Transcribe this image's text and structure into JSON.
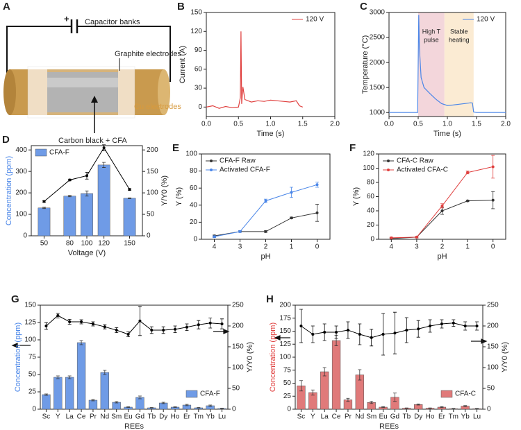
{
  "diagram": {
    "panel": "A",
    "labels": {
      "plus": "+",
      "capacitor": "Capacitor banks",
      "graphite": "Graphite electrodes",
      "cu": "Cu electrodes",
      "carbon": "Carbon black + CFA"
    }
  },
  "chart_data": [
    {
      "type": "line",
      "panel": "B",
      "xlabel": "Time (s)",
      "ylabel": "Current (A)",
      "xlim": [
        0,
        2
      ],
      "xticks": [
        {
          "value": 0,
          "label": "0.0"
        },
        {
          "value": 0.5,
          "label": "0.5"
        },
        {
          "value": 1,
          "label": "1.0"
        },
        {
          "value": 1.5,
          "label": "1.5"
        },
        {
          "value": 2,
          "label": "2.0"
        }
      ],
      "ylim": [
        -15,
        150
      ],
      "yticks": [
        0,
        30,
        60,
        90,
        120,
        150
      ],
      "legend": "upper right",
      "series": [
        {
          "name": "120 V",
          "color": "#e0403f",
          "x": [
            0,
            0.1,
            0.2,
            0.3,
            0.4,
            0.5,
            0.53,
            0.54,
            0.55,
            0.56,
            0.57,
            0.6,
            0.7,
            0.8,
            0.9,
            1.0,
            1.1,
            1.2,
            1.3,
            1.4,
            1.45,
            1.5
          ],
          "values": [
            0,
            2,
            -2,
            1,
            -1,
            0,
            15,
            120,
            5,
            20,
            32,
            12,
            8,
            10,
            9,
            11,
            10,
            9,
            8,
            10,
            2,
            0
          ]
        }
      ]
    },
    {
      "type": "line",
      "panel": "C",
      "xlabel": "Time (s)",
      "ylabel": "Temperature (°C)",
      "xlim": [
        0,
        2
      ],
      "xticks": [
        {
          "value": 0,
          "label": "0.0"
        },
        {
          "value": 0.5,
          "label": "0.5"
        },
        {
          "value": 1,
          "label": "1.0"
        },
        {
          "value": 1.5,
          "label": "1.5"
        },
        {
          "value": 2,
          "label": "2.0"
        }
      ],
      "ylim": [
        920,
        3000
      ],
      "yticks": [
        1000,
        1500,
        2000,
        2500,
        3000
      ],
      "legend": "upper right",
      "regions": [
        {
          "label": [
            "High T",
            "pulse"
          ],
          "x": [
            0.5,
            0.95
          ],
          "color": "#f3d6db"
        },
        {
          "label": [
            "Stable",
            "heating"
          ],
          "x": [
            0.95,
            1.45
          ],
          "color": "#fbebd3"
        }
      ],
      "series": [
        {
          "name": "120 V",
          "color": "#4a86e8",
          "x": [
            0,
            0.1,
            0.2,
            0.3,
            0.4,
            0.49,
            0.5,
            0.51,
            0.52,
            0.55,
            0.6,
            0.7,
            0.8,
            0.9,
            1.0,
            1.1,
            1.2,
            1.3,
            1.4,
            1.43,
            1.45,
            1.5,
            1.7,
            2.0
          ],
          "values": [
            1000,
            1000,
            1000,
            1000,
            1000,
            1000,
            2000,
            2950,
            2300,
            1700,
            1500,
            1380,
            1270,
            1180,
            1140,
            1150,
            1165,
            1180,
            1195,
            1190,
            1010,
            1000,
            1000,
            1000
          ]
        }
      ]
    },
    {
      "type": "combo",
      "panel": "D",
      "xlabel": "Voltage (V)",
      "ylabel": "Concentration (ppm)",
      "y2label": "Y/Y0 (%)",
      "ylabel_color": "#4a86e8",
      "x": [
        50,
        80,
        100,
        120,
        150
      ],
      "xlim": [
        35,
        165
      ],
      "xticks": [
        50,
        80,
        100,
        120,
        150
      ],
      "ylim": [
        0,
        420
      ],
      "yticks": [
        0,
        100,
        200,
        300,
        400
      ],
      "y2lim": [
        0,
        210
      ],
      "y2ticks": [
        0,
        50,
        100,
        150,
        200
      ],
      "legend": "upper left",
      "series": [
        {
          "name": "CFA-F",
          "type": "bar",
          "color": "#6f9be6",
          "values": [
            130,
            185,
            197,
            330,
            175
          ],
          "errors": [
            3,
            3,
            12,
            12,
            2
          ]
        },
        {
          "type": "line",
          "axis": "y2",
          "color": "#000000",
          "values": [
            80,
            130,
            140,
            205,
            108
          ],
          "errors": [
            2,
            2,
            8,
            7,
            2
          ]
        }
      ]
    },
    {
      "type": "line",
      "panel": "E",
      "xlabel": "pH",
      "ylabel": "Y (%)",
      "categories": [
        "4",
        "3",
        "2",
        "1",
        "0"
      ],
      "ylim": [
        0,
        100
      ],
      "yticks": [
        0,
        20,
        40,
        60,
        80,
        100
      ],
      "legend": "upper left",
      "series": [
        {
          "name": "CFA-F Raw",
          "color": "#333333",
          "values": [
            4,
            9,
            9,
            25,
            31
          ],
          "errors": [
            1,
            1,
            1,
            1,
            10
          ]
        },
        {
          "name": "Activated CFA-F",
          "color": "#4a86e8",
          "values": [
            3,
            9,
            45,
            55,
            64
          ],
          "errors": [
            1,
            1,
            2,
            6,
            3
          ]
        }
      ]
    },
    {
      "type": "line",
      "panel": "F",
      "xlabel": "pH",
      "ylabel": "Y (%)",
      "categories": [
        "4",
        "3",
        "2",
        "1",
        "0"
      ],
      "ylim": [
        0,
        120
      ],
      "yticks": [
        0,
        20,
        40,
        60,
        80,
        100,
        120
      ],
      "legend": "upper left",
      "series": [
        {
          "name": "CFA-C Raw",
          "color": "#333333",
          "values": [
            1,
            3,
            40,
            54,
            55
          ],
          "errors": [
            1,
            1,
            5,
            1,
            12
          ]
        },
        {
          "name": "Activated CFA-C",
          "color": "#e0403f",
          "values": [
            2,
            3,
            47,
            94,
            102
          ],
          "errors": [
            1,
            1,
            3,
            2,
            16
          ]
        }
      ]
    },
    {
      "type": "combo",
      "panel": "G",
      "xlabel": "REEs",
      "ylabel": "Concentration (ppm)",
      "y2label": "Y/Y0 (%)",
      "ylabel_color": "#4a86e8",
      "categories": [
        "Sc",
        "Y",
        "La",
        "Ce",
        "Pr",
        "Nd",
        "Sm",
        "Eu",
        "Gd",
        "Tb",
        "Dy",
        "Ho",
        "Er",
        "Tm",
        "Yb",
        "Lu"
      ],
      "ylim": [
        0,
        150
      ],
      "yticks": [
        0,
        25,
        50,
        75,
        100,
        125,
        150
      ],
      "y2lim": [
        0,
        250
      ],
      "y2ticks": [
        0,
        50,
        100,
        150,
        200,
        250
      ],
      "legend": "lower right",
      "series": [
        {
          "name": "CFA-F",
          "type": "bar",
          "color": "#6f9be6",
          "values": [
            21,
            46,
            46,
            96,
            13,
            53,
            10,
            3,
            17,
            2,
            9,
            3,
            6,
            2,
            5,
            1
          ],
          "errors": [
            1,
            2,
            2,
            3,
            1,
            3,
            1,
            0.5,
            2,
            0.5,
            1,
            0.5,
            1,
            0.5,
            1,
            0.5
          ]
        },
        {
          "type": "line",
          "axis": "y2",
          "color": "#000000",
          "values": [
            200,
            225,
            210,
            210,
            205,
            198,
            190,
            180,
            212,
            190,
            190,
            192,
            197,
            203,
            207,
            205
          ],
          "errors": [
            8,
            6,
            6,
            5,
            5,
            5,
            6,
            6,
            35,
            8,
            8,
            8,
            8,
            10,
            12,
            12
          ]
        }
      ]
    },
    {
      "type": "combo",
      "panel": "H",
      "xlabel": "REEs",
      "ylabel": "Concentration (ppm)",
      "y2label": "Y/Y0 (%)",
      "ylabel_color": "#e0403f",
      "categories": [
        "Sc",
        "Y",
        "La",
        "Ce",
        "Pr",
        "Nd",
        "Sm",
        "Eu",
        "Gd",
        "Tb",
        "Dy",
        "Ho",
        "Er",
        "Tm",
        "Yb",
        "Lu"
      ],
      "ylim": [
        0,
        200
      ],
      "yticks": [
        0,
        25,
        50,
        75,
        100,
        125,
        150,
        175,
        200
      ],
      "y2lim": [
        0,
        250
      ],
      "y2ticks": [
        0,
        50,
        100,
        150,
        200,
        250
      ],
      "legend": "lower right",
      "series": [
        {
          "name": "CFA-C",
          "type": "bar",
          "color": "#e07a7a",
          "values": [
            45,
            32,
            72,
            132,
            18,
            66,
            13,
            4,
            23,
            2,
            9,
            2,
            4,
            1,
            6,
            1
          ],
          "errors": [
            10,
            5,
            8,
            10,
            3,
            10,
            2,
            1,
            8,
            0.5,
            1,
            0.5,
            1,
            0.5,
            1,
            0.5
          ]
        },
        {
          "type": "line",
          "axis": "y2",
          "color": "#000000",
          "values": [
            200,
            180,
            185,
            185,
            190,
            180,
            172,
            180,
            183,
            190,
            193,
            200,
            205,
            207,
            200,
            200
          ],
          "errors": [
            40,
            20,
            20,
            15,
            20,
            25,
            20,
            50,
            50,
            30,
            20,
            15,
            10,
            8,
            10,
            10
          ]
        }
      ]
    }
  ]
}
